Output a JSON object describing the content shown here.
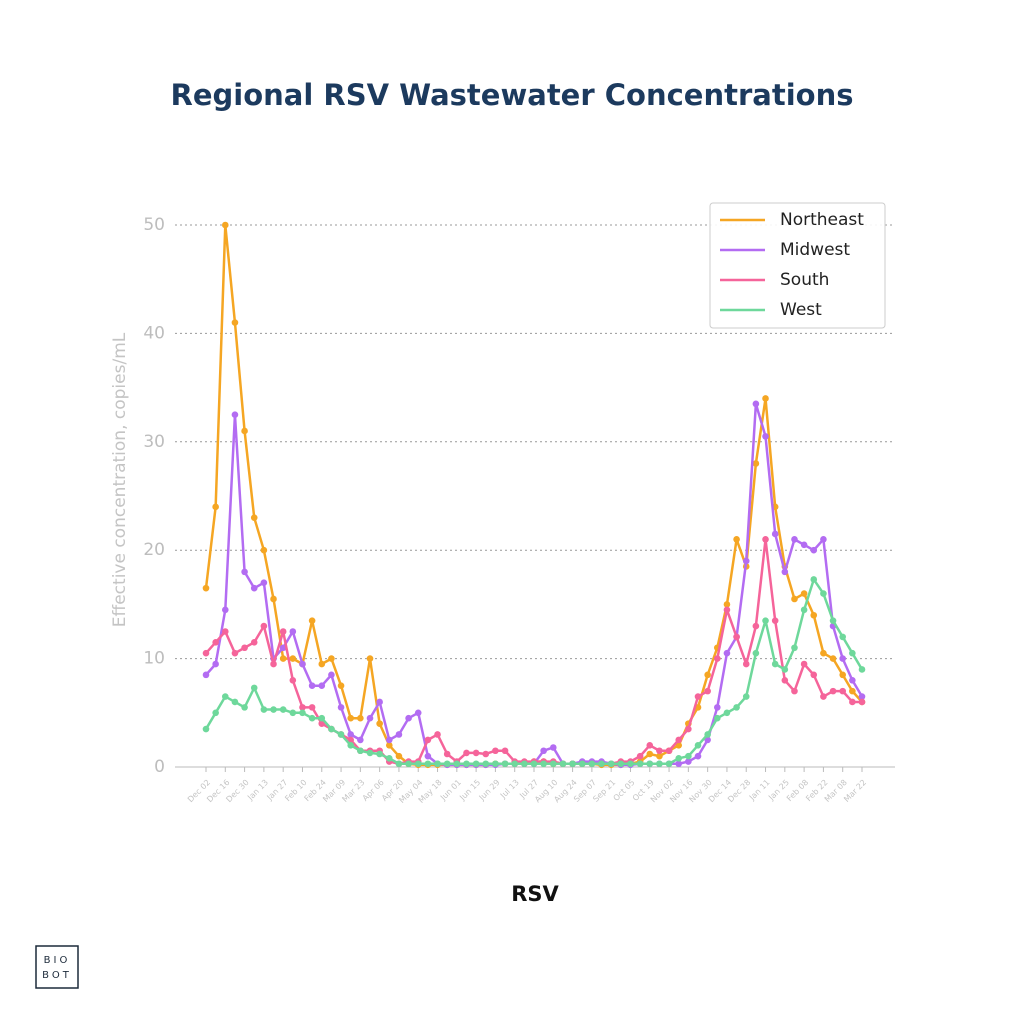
{
  "chart_data": {
    "type": "line",
    "title": "Regional RSV Wastewater Concentrations",
    "y_label": "Effective concentration, copies/mL",
    "x_label": "RSV",
    "categories": [
      "Dec 02",
      null,
      "Dec 16",
      null,
      "Dec 30",
      null,
      "Jan 13",
      null,
      "Jan 27",
      null,
      "Feb 10",
      null,
      "Feb 24",
      null,
      "Mar 09",
      null,
      "Mar 23",
      null,
      "Apr 06",
      null,
      "Apr 20",
      null,
      "May 04",
      null,
      "May 18",
      null,
      "Jun 01",
      null,
      "Jun 15",
      null,
      "Jun 29",
      null,
      "Jul 13",
      null,
      "Jul 27",
      null,
      "Aug 10",
      null,
      "Aug 24",
      null,
      "Sep 07",
      null,
      "Sep 21",
      null,
      "Oct 05",
      null,
      "Oct 19",
      null,
      "Nov 02",
      null,
      "Nov 16",
      null,
      "Nov 30",
      null,
      "Dec 14",
      null,
      "Dec 28",
      null,
      "Jan 11",
      null,
      "Jan 25",
      null,
      "Feb 08",
      null,
      "Feb 22",
      null,
      "Mar 08",
      null,
      "Mar 22"
    ],
    "series": [
      {
        "name": "Northeast",
        "color": "#f5a623",
        "values": [
          16.5,
          24,
          50,
          41,
          31,
          23,
          20,
          15.5,
          10,
          10,
          9.5,
          13.5,
          9.5,
          10,
          7.5,
          4.5,
          4.5,
          10,
          4,
          2,
          1,
          0.3,
          0.2,
          0.2,
          0.2,
          0.2,
          0.2,
          0.2,
          0.2,
          0.2,
          0.3,
          0.3,
          0.3,
          0.3,
          0.5,
          0.5,
          0.3,
          0.3,
          0.3,
          0.3,
          0.3,
          0.2,
          0.2,
          0.2,
          0.3,
          0.5,
          1.2,
          1,
          1.5,
          2,
          4,
          5.5,
          8.5,
          11,
          15,
          21,
          18.5,
          28,
          34,
          24,
          18.5,
          15.5,
          16,
          14,
          10.5,
          10,
          8.5,
          7,
          6
        ]
      },
      {
        "name": "Midwest",
        "color": "#b36cf2",
        "values": [
          8.5,
          9.5,
          14.5,
          32.5,
          18,
          16.5,
          17,
          10,
          11,
          12.5,
          9.5,
          7.5,
          7.5,
          8.5,
          5.5,
          3,
          2.5,
          4.5,
          6,
          2.5,
          3,
          4.5,
          5,
          1,
          0.3,
          0.2,
          0.2,
          0.2,
          0.2,
          0.2,
          0.2,
          0.3,
          0.3,
          0.3,
          0.3,
          1.5,
          1.8,
          0.3,
          0.3,
          0.5,
          0.5,
          0.5,
          0.3,
          0.2,
          0.2,
          0.3,
          0.3,
          0.3,
          0.3,
          0.3,
          0.5,
          1,
          2.5,
          5.5,
          10.5,
          12,
          19,
          33.5,
          30.5,
          21.5,
          18,
          21,
          20.5,
          20,
          21,
          13,
          10,
          8,
          6.5
        ]
      },
      {
        "name": "South",
        "color": "#f5649a",
        "values": [
          10.5,
          11.5,
          12.5,
          10.5,
          11,
          11.5,
          13,
          9.5,
          12.5,
          8,
          5.5,
          5.5,
          4,
          3.5,
          3,
          2.5,
          1.5,
          1.5,
          1.5,
          0.5,
          0.3,
          0.5,
          0.5,
          2.5,
          3,
          1.2,
          0.5,
          1.3,
          1.3,
          1.2,
          1.5,
          1.5,
          0.5,
          0.5,
          0.5,
          0.5,
          0.5,
          0.3,
          0.3,
          0.3,
          0.3,
          0.3,
          0.3,
          0.5,
          0.5,
          1,
          2,
          1.5,
          1.5,
          2.5,
          3.5,
          6.5,
          7,
          10,
          14.5,
          12,
          9.5,
          13,
          21,
          13.5,
          8,
          7,
          9.5,
          8.5,
          6.5,
          7,
          7,
          6,
          6
        ]
      },
      {
        "name": "West",
        "color": "#6ed89b",
        "values": [
          3.5,
          5,
          6.5,
          6,
          5.5,
          7.3,
          5.3,
          5.3,
          5.3,
          5,
          5,
          4.5,
          4.5,
          3.5,
          3,
          2,
          1.5,
          1.3,
          1.2,
          0.8,
          0.3,
          0.3,
          0.3,
          0.3,
          0.3,
          0.3,
          0.3,
          0.3,
          0.3,
          0.3,
          0.3,
          0.3,
          0.3,
          0.3,
          0.3,
          0.3,
          0.3,
          0.3,
          0.3,
          0.3,
          0.3,
          0.3,
          0.3,
          0.3,
          0.3,
          0.3,
          0.3,
          0.3,
          0.3,
          0.8,
          1,
          2,
          3,
          4.5,
          5,
          5.5,
          6.5,
          10.5,
          13.5,
          9.5,
          9,
          11,
          14.5,
          17.3,
          16,
          13.5,
          12,
          10.5,
          9
        ]
      }
    ],
    "ylim": [
      0,
      50
    ],
    "yticks": [
      0,
      10,
      20,
      30,
      40,
      50
    ],
    "grid": true,
    "legend": "upper right"
  },
  "logo": [
    "BIO",
    "BOT"
  ]
}
